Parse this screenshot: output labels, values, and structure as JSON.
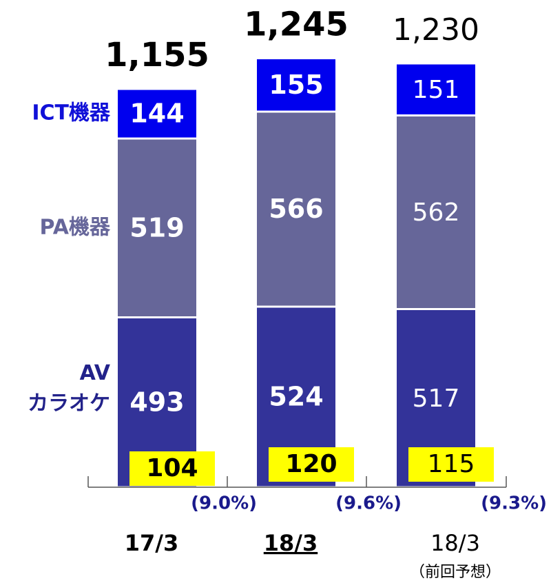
{
  "chart_data": {
    "type": "stacked_bar",
    "categories": [
      "17/3",
      "18/3",
      "18/3"
    ],
    "category_notes": [
      null,
      null,
      "（前回予想）"
    ],
    "emphasis": [
      true,
      true,
      false
    ],
    "underline": [
      false,
      true,
      false
    ],
    "series": [
      {
        "name": "AV\nカラオケ",
        "color": "#333399",
        "label_color": "#22228a",
        "values": [
          493,
          524,
          517
        ]
      },
      {
        "name": "PA機器",
        "color": "#666699",
        "label_color": "#66669a",
        "values": [
          519,
          566,
          562
        ]
      },
      {
        "name": "ICT機器",
        "color": "#0000ee",
        "label_color": "#1010d8",
        "values": [
          144,
          155,
          151
        ]
      }
    ],
    "totals": {
      "values": [
        1155,
        1245,
        1230
      ],
      "value_labels": [
        "1,155",
        "1,245",
        "1,230"
      ]
    },
    "profit": {
      "color": "#ffff00",
      "values": [
        104,
        120,
        115
      ]
    },
    "margin": {
      "color": "#1a1a8c",
      "values": [
        9.0,
        9.6,
        9.3
      ],
      "value_labels": [
        "(9.0%)",
        "(9.6%)",
        "(9.3%)"
      ]
    },
    "ylim": [
      0,
      1400
    ]
  }
}
